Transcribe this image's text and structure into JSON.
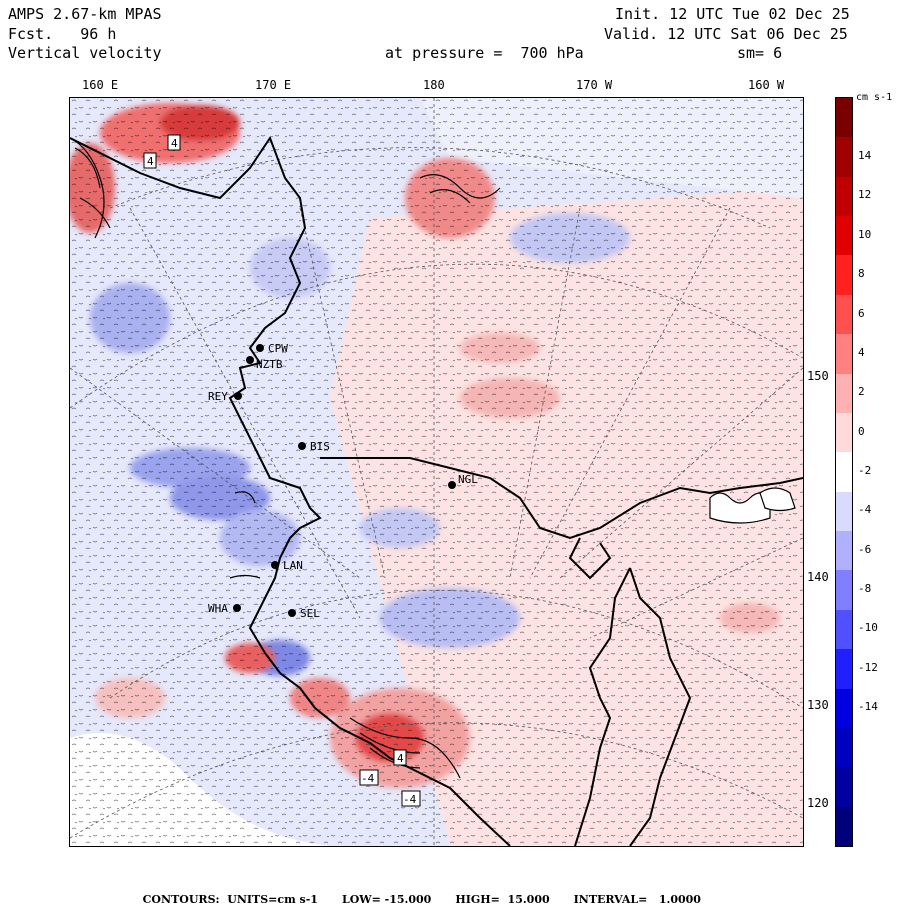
{
  "header": {
    "model": "AMPS 2.67-km MPAS",
    "forecast": "Fcst.   96 h",
    "variable": "Vertical velocity",
    "init": "Init. 12 UTC Tue 02 Dec 25",
    "valid": "Valid. 12 UTC Sat 06 Dec 25",
    "pressure": "at pressure =  700 hPa",
    "smooth": "sm= 6"
  },
  "longitude_labels": [
    "160 E",
    "170 E",
    "180",
    "170 W",
    "160 W"
  ],
  "latitude_labels": [
    "150 W",
    "140 W",
    "130 W",
    "120 W"
  ],
  "stations": [
    {
      "name": "CPW"
    },
    {
      "name": "NZTB"
    },
    {
      "name": "REY"
    },
    {
      "name": "BIS"
    },
    {
      "name": "NGL"
    },
    {
      "name": "LAN"
    },
    {
      "name": "WHA"
    },
    {
      "name": "SEL"
    }
  ],
  "contour_labels": [
    "4",
    "4",
    "4",
    "-4",
    "-4"
  ],
  "colorbar": {
    "unit": "cm s-1",
    "ticks": [
      "14",
      "12",
      "10",
      "8",
      "6",
      "4",
      "2",
      "0",
      "-2",
      "-4",
      "-6",
      "-8",
      "-10",
      "-12",
      "-14"
    ],
    "colors": [
      "#7a0000",
      "#a00000",
      "#c00000",
      "#e00000",
      "#ff2020",
      "#ff5050",
      "#ff8080",
      "#ffb0b0",
      "#ffdada",
      "#ffffff",
      "#dadaff",
      "#b0b0ff",
      "#8080ff",
      "#5050ff",
      "#2020ff",
      "#0000e0",
      "#0000c0",
      "#0000a0",
      "#00007a"
    ]
  },
  "footer": {
    "contours": "CONTOURS:  UNITS=cm s-1",
    "low": "LOW= -15.000",
    "high": "HIGH=  15.000",
    "interval": "INTERVAL=   1.0000"
  }
}
